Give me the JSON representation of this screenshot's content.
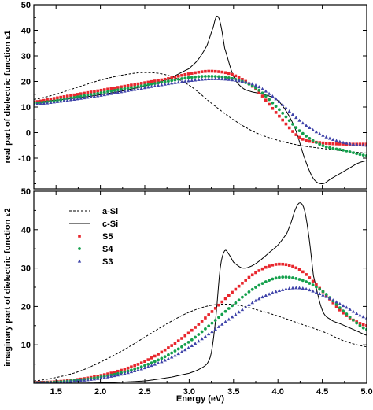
{
  "chart_data": [
    {
      "type": "line",
      "panel": "top",
      "ylabel": "real part of dielectric function ε1",
      "xlabel": "",
      "xlim": [
        1.25,
        5.0
      ],
      "ylim": [
        -22,
        50
      ],
      "yticks": [
        -10,
        0,
        10,
        20,
        30,
        40,
        50
      ],
      "xticks": [
        1.5,
        2.0,
        2.5,
        3.0,
        3.5,
        4.0,
        4.5,
        5.0
      ],
      "series": [
        {
          "name": "a-Si",
          "style": "dashed",
          "color": "#000000",
          "x": [
            1.25,
            1.5,
            1.75,
            2.0,
            2.25,
            2.5,
            2.75,
            3.0,
            3.25,
            3.5,
            3.75,
            4.0,
            4.25,
            4.5,
            4.75,
            5.0
          ],
          "y": [
            13,
            15,
            17.8,
            20.5,
            22.5,
            23.5,
            22.5,
            18.5,
            11.5,
            5,
            0,
            -3,
            -5,
            -6.2,
            -7.2,
            -8
          ]
        },
        {
          "name": "c-Si",
          "style": "solid",
          "color": "#000000",
          "x": [
            1.25,
            1.5,
            1.75,
            2.0,
            2.25,
            2.5,
            2.75,
            3.0,
            3.1,
            3.2,
            3.27,
            3.31,
            3.35,
            3.4,
            3.5,
            3.6,
            3.7,
            3.8,
            3.9,
            4.0,
            4.1,
            4.2,
            4.3,
            4.4,
            4.5,
            4.6,
            4.7,
            4.8,
            4.9,
            5.0
          ],
          "y": [
            12,
            12.7,
            13.6,
            14.8,
            16.3,
            18.2,
            20.8,
            25,
            28.5,
            34,
            41,
            45.5,
            43,
            33,
            22,
            17.5,
            16,
            15.3,
            14.3,
            12.5,
            8,
            1,
            -10,
            -18,
            -20,
            -18,
            -16,
            -14,
            -12,
            -11
          ]
        },
        {
          "name": "S5",
          "style": "square",
          "color": "#e8262d",
          "x": [
            1.25,
            1.5,
            1.75,
            2.0,
            2.25,
            2.5,
            2.75,
            3.0,
            3.25,
            3.5,
            3.75,
            4.0,
            4.25,
            4.5,
            4.75,
            5.0
          ],
          "y": [
            12,
            13.5,
            15,
            16.5,
            18,
            19.5,
            21,
            23,
            24,
            22.5,
            17,
            7,
            -2,
            -4,
            -4.5,
            -4.5
          ]
        },
        {
          "name": "S4",
          "style": "circle",
          "color": "#14a04c",
          "x": [
            1.25,
            1.5,
            1.75,
            2.0,
            2.25,
            2.5,
            2.75,
            3.0,
            3.25,
            3.5,
            3.75,
            4.0,
            4.25,
            4.5,
            4.75,
            5.0
          ],
          "y": [
            11.5,
            12.5,
            14,
            15.5,
            17,
            18.5,
            20,
            21.5,
            22,
            21,
            17.5,
            9.5,
            0.5,
            -5,
            -7,
            -9
          ]
        },
        {
          "name": "S3",
          "style": "triangle",
          "color": "#3f43a9",
          "x": [
            1.25,
            1.5,
            1.75,
            2.0,
            2.25,
            2.5,
            2.75,
            3.0,
            3.25,
            3.5,
            3.75,
            4.0,
            4.25,
            4.5,
            4.75,
            5.0
          ],
          "y": [
            11,
            12,
            13.2,
            14.5,
            16,
            17.5,
            19,
            20.2,
            21,
            20.5,
            18.5,
            12.5,
            4.5,
            -1,
            -4,
            -5
          ]
        }
      ]
    },
    {
      "type": "line",
      "panel": "bottom",
      "ylabel": "imaginary part of dielectric function ε2",
      "xlabel": "Energy (eV)",
      "xlim": [
        1.25,
        5.0
      ],
      "ylim": [
        0,
        50
      ],
      "yticks": [
        10,
        20,
        30,
        40,
        50
      ],
      "xticks": [
        1.5,
        2.0,
        2.5,
        3.0,
        3.5,
        4.0,
        4.5,
        5.0
      ],
      "legend_position": "upper-left",
      "series": [
        {
          "name": "a-Si",
          "style": "dashed",
          "color": "#000000",
          "x": [
            1.25,
            1.5,
            1.75,
            2.0,
            2.25,
            2.5,
            2.75,
            3.0,
            3.25,
            3.5,
            3.75,
            4.0,
            4.25,
            4.5,
            4.75,
            5.0
          ],
          "y": [
            0.6,
            1.5,
            3,
            5.5,
            8.5,
            12,
            15.5,
            18.5,
            20.3,
            20.5,
            19.2,
            17.5,
            15.5,
            13.5,
            11,
            9.5
          ]
        },
        {
          "name": "c-Si",
          "style": "solid",
          "color": "#000000",
          "x": [
            1.25,
            1.5,
            2.0,
            2.5,
            2.8,
            3.0,
            3.1,
            3.2,
            3.25,
            3.3,
            3.35,
            3.4,
            3.45,
            3.5,
            3.6,
            3.7,
            3.8,
            3.9,
            4.0,
            4.1,
            4.15,
            4.2,
            4.25,
            4.3,
            4.35,
            4.4,
            4.5,
            4.6,
            4.7,
            4.8,
            4.9,
            5.0
          ],
          "y": [
            0,
            0,
            0.1,
            0.6,
            1.6,
            2.6,
            3.5,
            5,
            8,
            17,
            30,
            34.5,
            33.5,
            31.5,
            30,
            30.5,
            32,
            34,
            36,
            39,
            42,
            45.5,
            47,
            45,
            38,
            28,
            19,
            16.5,
            15.5,
            14.5,
            13.5,
            12.5
          ]
        },
        {
          "name": "S5",
          "style": "square",
          "color": "#e8262d",
          "x": [
            1.25,
            1.5,
            1.75,
            2.0,
            2.25,
            2.5,
            2.75,
            3.0,
            3.25,
            3.5,
            3.75,
            4.0,
            4.25,
            4.5,
            4.75,
            5.0
          ],
          "y": [
            0.2,
            0.4,
            1,
            2,
            3.5,
            5.7,
            9,
            13.2,
            18.5,
            24,
            28.8,
            31,
            29.5,
            24,
            18,
            15
          ]
        },
        {
          "name": "S4",
          "style": "circle",
          "color": "#14a04c",
          "x": [
            1.25,
            1.5,
            1.75,
            2.0,
            2.25,
            2.5,
            2.75,
            3.0,
            3.25,
            3.5,
            3.75,
            4.0,
            4.25,
            4.5,
            4.75,
            5.0
          ],
          "y": [
            0.1,
            0.3,
            0.8,
            1.6,
            2.8,
            4.6,
            7.2,
            10.8,
            15.5,
            20.5,
            25,
            27.5,
            27,
            24,
            18.5,
            14
          ]
        },
        {
          "name": "S3",
          "style": "triangle",
          "color": "#3f43a9",
          "x": [
            1.25,
            1.5,
            1.75,
            2.0,
            2.25,
            2.5,
            2.75,
            3.0,
            3.25,
            3.5,
            3.75,
            4.0,
            4.25,
            4.5,
            4.75,
            5.0
          ],
          "y": [
            0.1,
            0.2,
            0.6,
            1.3,
            2.4,
            4,
            6.2,
            9.3,
            13.3,
            17.5,
            21.5,
            24,
            24.8,
            23,
            20,
            17
          ]
        }
      ]
    }
  ],
  "legend": {
    "items": [
      {
        "label": "a-Si",
        "style": "dashed",
        "color": "#000000"
      },
      {
        "label": "c-Si",
        "style": "solid",
        "color": "#000000"
      },
      {
        "label": "S5",
        "style": "square",
        "color": "#e8262d"
      },
      {
        "label": "S4",
        "style": "circle",
        "color": "#14a04c"
      },
      {
        "label": "S3",
        "style": "triangle",
        "color": "#3f43a9"
      }
    ]
  }
}
